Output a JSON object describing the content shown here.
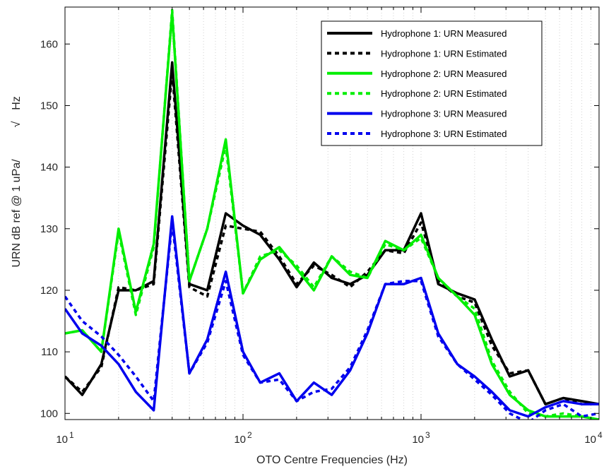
{
  "chart_data": {
    "type": "line",
    "xlabel": "OTO Centre Frequencies (Hz)",
    "ylabel": "URN dB ref @ 1 uPa/",
    "ylabel_sqrt": "√",
    "ylabel_unit": "Hz",
    "x_scale": "log",
    "xlim": [
      10,
      10000
    ],
    "ylim": [
      99,
      166
    ],
    "grid": "vertical dotted",
    "legend_position": "top-right",
    "xticks": [
      {
        "base": "10",
        "exp": "1",
        "value": 10
      },
      {
        "base": "10",
        "exp": "2",
        "value": 100
      },
      {
        "base": "10",
        "exp": "3",
        "value": 1000
      },
      {
        "base": "10",
        "exp": "4",
        "value": 10000
      }
    ],
    "yticks": [
      "100",
      "110",
      "120",
      "130",
      "140",
      "150",
      "160"
    ],
    "x": [
      10,
      12.5,
      16,
      20,
      25,
      31.5,
      40,
      50,
      63,
      80,
      100,
      125,
      160,
      200,
      250,
      315,
      400,
      500,
      630,
      800,
      1000,
      1250,
      1600,
      2000,
      2500,
      3150,
      4000,
      5000,
      6300,
      8000,
      10000
    ],
    "series": [
      {
        "name": "Hydrophone 1: URN Measured",
        "color": "#000000",
        "style": "solid",
        "values": [
          106,
          103,
          108,
          120,
          120,
          121.5,
          157,
          121,
          120,
          132.5,
          130.5,
          129,
          125,
          120.5,
          124.5,
          122,
          121,
          122.5,
          126.5,
          126.5,
          132.5,
          121,
          119.5,
          118.5,
          112,
          106,
          107,
          101.5,
          102.5,
          102,
          101.5
        ]
      },
      {
        "name": "Hydrophone 1: URN Estimated",
        "color": "#000000",
        "style": "dotted",
        "values": [
          106,
          103.5,
          107.5,
          120.5,
          120,
          121,
          155.5,
          120.5,
          119,
          130.5,
          130,
          129.5,
          125.5,
          121,
          124,
          122.5,
          120.5,
          123,
          126.5,
          126,
          131,
          121.5,
          119,
          118,
          111,
          106.5,
          107,
          101.5,
          102.5,
          101.5,
          101.5
        ]
      },
      {
        "name": "Hydrophone 2: URN Measured",
        "color": "#00ee00",
        "style": "solid",
        "values": [
          113,
          113.5,
          110,
          130,
          116.5,
          127.5,
          165,
          121.5,
          130,
          144.5,
          119.5,
          125,
          127,
          123.5,
          120,
          125.5,
          122.5,
          122,
          128,
          126.5,
          129,
          122,
          119,
          116,
          108,
          103,
          100.5,
          99.5,
          99.5,
          99.5,
          99
        ]
      },
      {
        "name": "Hydrophone 2: URN Estimated",
        "color": "#00ee00",
        "style": "dotted",
        "values": [
          113,
          113.5,
          110,
          129.5,
          116,
          127,
          165.5,
          121.5,
          130,
          143.5,
          119.5,
          125.5,
          126.5,
          124,
          120.5,
          125.5,
          123,
          122,
          127.5,
          126.5,
          128.5,
          122,
          119,
          117,
          108.5,
          103.5,
          100,
          99.5,
          100,
          99.5,
          99
        ]
      },
      {
        "name": "Hydrophone 3: URN Measured",
        "color": "#0000ee",
        "style": "solid",
        "values": [
          117,
          113,
          111,
          108,
          103.5,
          100.5,
          132,
          106.5,
          112,
          123,
          110,
          105,
          106.5,
          102,
          105,
          103,
          107,
          113,
          121,
          121,
          122,
          113,
          108,
          106,
          103.5,
          100.5,
          99.5,
          101,
          102,
          101.5,
          101.5
        ]
      },
      {
        "name": "Hydrophone 3: URN Estimated",
        "color": "#0000ee",
        "style": "dotted",
        "values": [
          119,
          115,
          112.5,
          109.5,
          106,
          102,
          131,
          106.5,
          111.5,
          121.5,
          109.5,
          105,
          105.5,
          102,
          103.5,
          104,
          107.5,
          113.5,
          121,
          121.5,
          121.5,
          112.5,
          108,
          105.5,
          103,
          100,
          98.5,
          100.5,
          101.5,
          99.5,
          100
        ]
      }
    ]
  }
}
